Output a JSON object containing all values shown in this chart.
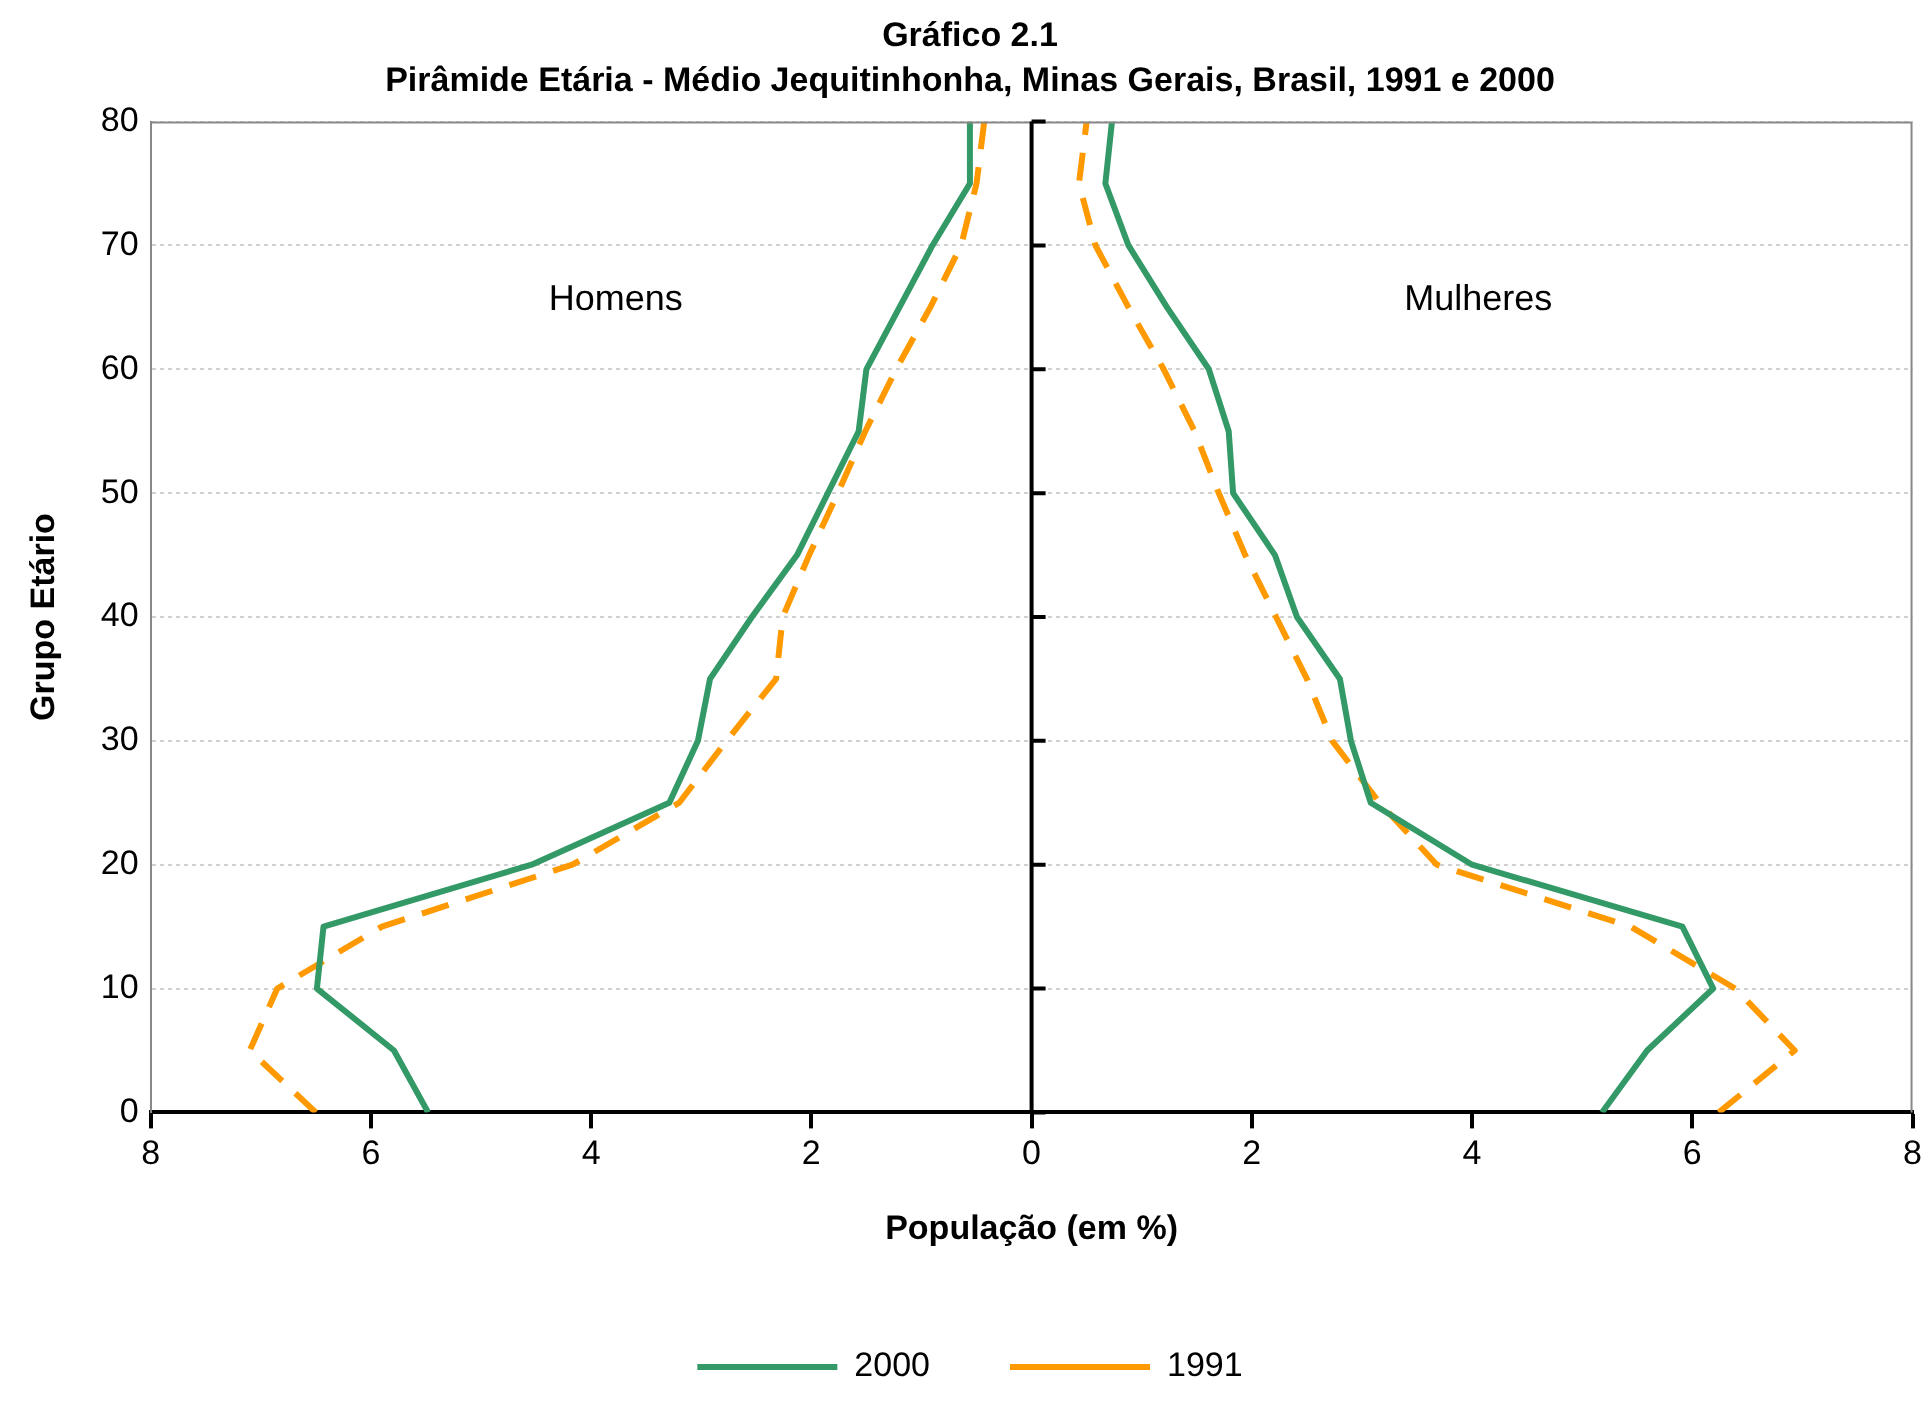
{
  "chart_data": {
    "type": "line",
    "title": "Gráfico 2.1",
    "subtitle": "Pirâmide Etária - Médio Jequitinhonha, Minas Gerais, Brasil, 1991 e 2000",
    "xlabel": "População (em %)",
    "ylabel": "Grupo Etário",
    "annotations": [
      "Homens",
      "Mulheres"
    ],
    "xlim": [
      -8,
      8
    ],
    "xticks": [
      {
        "value": -8,
        "label": "8"
      },
      {
        "value": -6,
        "label": "6"
      },
      {
        "value": -4,
        "label": "4"
      },
      {
        "value": -2,
        "label": "2"
      },
      0,
      2,
      4,
      6,
      8
    ],
    "ylim": [
      0,
      80
    ],
    "yticks": [
      0,
      10,
      20,
      30,
      40,
      50,
      60,
      70,
      80
    ],
    "grid": "y",
    "legend": "bottom",
    "marker": "none",
    "series": [
      {
        "name": "2000",
        "color": "#339966",
        "line_style": "solid",
        "x": [
          -5.48,
          -5.79,
          -6.49,
          -6.43,
          -4.54,
          -3.29,
          -3.03,
          -2.92,
          -2.54,
          -2.13,
          -1.85,
          -1.57,
          -1.5,
          -1.2,
          -0.9,
          -0.56,
          -0.56
        ],
        "values": [
          0,
          5,
          10,
          15,
          20,
          25,
          30,
          35,
          40,
          45,
          50,
          55,
          60,
          65,
          70,
          75,
          80
        ]
      },
      {
        "name": "1991",
        "color": "#ff9900",
        "line_style": "dashed",
        "x": [
          -6.5,
          -7.1,
          -6.85,
          -5.9,
          -4.17,
          -3.2,
          -2.77,
          -2.32,
          -2.26,
          -2.02,
          -1.76,
          -1.51,
          -1.23,
          -0.92,
          -0.64,
          -0.5,
          -0.43
        ],
        "values": [
          0,
          5,
          10,
          15,
          20,
          25,
          30,
          35,
          40,
          45,
          50,
          55,
          60,
          65,
          70,
          75,
          80
        ]
      },
      {
        "color": "#339966",
        "line_style": "solid",
        "x": [
          5.18,
          5.59,
          6.19,
          5.91,
          4.0,
          3.08,
          2.9,
          2.8,
          2.41,
          2.21,
          1.83,
          1.79,
          1.61,
          1.23,
          0.88,
          0.67,
          0.73
        ],
        "values": [
          0,
          5,
          10,
          15,
          20,
          25,
          30,
          35,
          40,
          45,
          50,
          55,
          60,
          65,
          70,
          75,
          80
        ]
      },
      {
        "color": "#ff9900",
        "line_style": "dashed",
        "x": [
          6.24,
          6.93,
          6.39,
          5.44,
          3.68,
          3.16,
          2.73,
          2.5,
          2.22,
          1.94,
          1.7,
          1.48,
          1.2,
          0.88,
          0.58,
          0.43,
          0.5
        ],
        "values": [
          0,
          5,
          10,
          15,
          20,
          25,
          30,
          35,
          40,
          45,
          50,
          55,
          60,
          65,
          70,
          75,
          80
        ]
      }
    ]
  }
}
